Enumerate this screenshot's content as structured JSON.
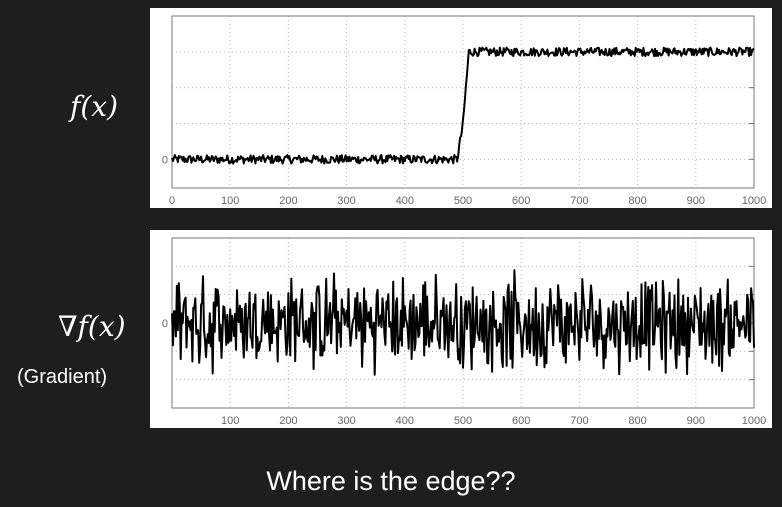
{
  "labels": {
    "top_plot": "f(x)",
    "bottom_plot": "∇f(x)",
    "bottom_sub": "(Gradient)",
    "caption": "Where is the edge??"
  },
  "chart_data": [
    {
      "type": "line",
      "title": "",
      "xlabel": "",
      "ylabel": "",
      "x_ticks": [
        0,
        100,
        200,
        300,
        400,
        500,
        600,
        700,
        800,
        900,
        1000
      ],
      "y_ticks": [
        "0"
      ],
      "xlim": [
        0,
        1000
      ],
      "ylim": [
        -0.4,
        2.0
      ],
      "grid": true,
      "series": [
        {
          "description": "noisy step signal",
          "x": [
            0,
            100,
            200,
            300,
            400,
            480,
            490,
            500,
            510,
            600,
            700,
            800,
            900,
            1000
          ],
          "y": [
            0,
            0,
            0,
            0,
            0,
            0,
            0,
            0.5,
            1.5,
            1.5,
            1.5,
            1.5,
            1.5,
            1.5
          ],
          "noise_amplitude": 0.06
        }
      ]
    },
    {
      "type": "line",
      "title": "",
      "xlabel": "",
      "ylabel": "",
      "x_ticks": [
        100,
        200,
        300,
        400,
        500,
        600,
        700,
        800,
        900,
        1000
      ],
      "y_ticks": [
        "0"
      ],
      "xlim": [
        0,
        1000
      ],
      "ylim": [
        -1.5,
        1.5
      ],
      "grid": true,
      "series": [
        {
          "description": "gradient of noisy signal (dominated by noise)",
          "x": [
            0,
            1000
          ],
          "y": [
            0,
            0
          ],
          "noise_amplitude": 0.8
        }
      ]
    }
  ]
}
